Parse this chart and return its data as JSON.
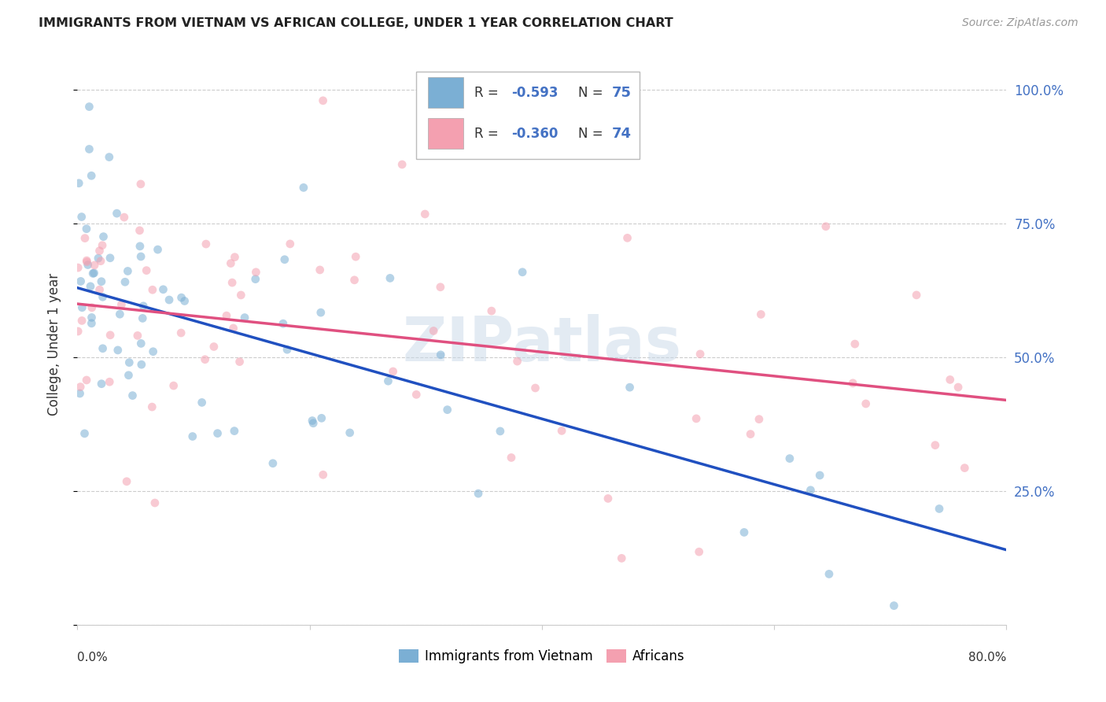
{
  "title": "IMMIGRANTS FROM VIETNAM VS AFRICAN COLLEGE, UNDER 1 YEAR CORRELATION CHART",
  "source": "Source: ZipAtlas.com",
  "ylabel": "College, Under 1 year",
  "watermark": "ZIPatlas",
  "yticks": [
    0.0,
    0.25,
    0.5,
    0.75,
    1.0
  ],
  "ytick_labels": [
    "",
    "25.0%",
    "50.0%",
    "75.0%",
    "100.0%"
  ],
  "xmin": 0.0,
  "xmax": 0.8,
  "ymin": 0.0,
  "ymax": 1.05,
  "blue_color": "#7bafd4",
  "pink_color": "#f4a0b0",
  "blue_line_color": "#2050c0",
  "pink_line_color": "#e05080",
  "right_tick_color": "#4472c4",
  "scatter_alpha": 0.55,
  "scatter_size": 60,
  "seed_blue": 42,
  "seed_pink": 99,
  "N_blue": 75,
  "N_pink": 74,
  "R_blue": -0.593,
  "R_pink": -0.36,
  "blue_line_x0": 0.0,
  "blue_line_y0": 0.63,
  "blue_line_x1": 0.8,
  "blue_line_y1": 0.14,
  "pink_line_x0": 0.0,
  "pink_line_y0": 0.6,
  "pink_line_x1": 0.8,
  "pink_line_y1": 0.42,
  "background_color": "#ffffff",
  "grid_color": "#cccccc",
  "legend_label_1": "Immigrants from Vietnam",
  "legend_label_2": "Africans"
}
